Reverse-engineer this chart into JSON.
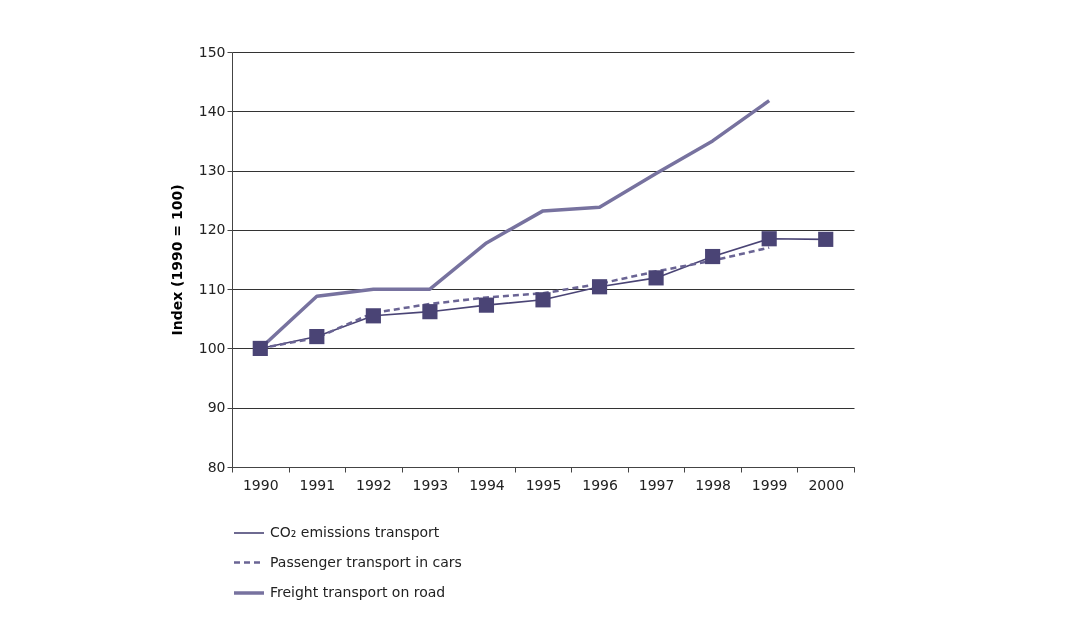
{
  "chart_data": {
    "type": "line",
    "ylabel": "Index (1990 = 100)",
    "categories": [
      "1990",
      "1991",
      "1992",
      "1993",
      "1994",
      "1995",
      "1996",
      "1997",
      "1998",
      "1999",
      "2000"
    ],
    "series": [
      {
        "name": "CO₂ emissions transport",
        "color": "#4a4475",
        "marker": "square",
        "line_style": "solid",
        "values": [
          100,
          102,
          105.5,
          106.2,
          107.3,
          108.2,
          110.4,
          111.9,
          115.5,
          118.5,
          118.4
        ]
      },
      {
        "name": "Passenger transport in cars",
        "color": "#6a6494",
        "marker": "none",
        "line_style": "dashed",
        "values": [
          100,
          101.8,
          106,
          107.5,
          108.6,
          109.3,
          110.9,
          113,
          114.8,
          117,
          null
        ]
      },
      {
        "name": "Freight transport on road",
        "color": "#77729f",
        "marker": "none",
        "line_style": "solid",
        "values": [
          100,
          108.8,
          110,
          110,
          117.8,
          123.2,
          123.8,
          129.5,
          135,
          141.8,
          null
        ]
      }
    ],
    "ylim": [
      80,
      150
    ],
    "yticks": [
      80,
      90,
      100,
      110,
      120,
      130,
      140,
      150
    ],
    "grid": "y",
    "legend": "bottom"
  }
}
